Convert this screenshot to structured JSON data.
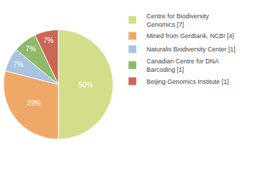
{
  "chart_data": {
    "type": "pie",
    "categories": [
      "Centre for Biodiversity\nGenomics [7]",
      "Mined from GenBank, NCBI [4]",
      "Naturalis Biodiversity Center [1]",
      "Canadian Centre for DNA\nBarcoding [1]",
      "Beijing Genomics Institute [1]"
    ],
    "values": [
      50,
      29,
      7,
      7,
      7
    ],
    "value_labels": [
      "50%",
      "29%",
      "7%",
      "7%",
      "7%"
    ],
    "colors": [
      "#d4de8a",
      "#f0a868",
      "#a8c4e0",
      "#8eba6a",
      "#cc6655"
    ],
    "data_labels": true,
    "legend": "right"
  }
}
